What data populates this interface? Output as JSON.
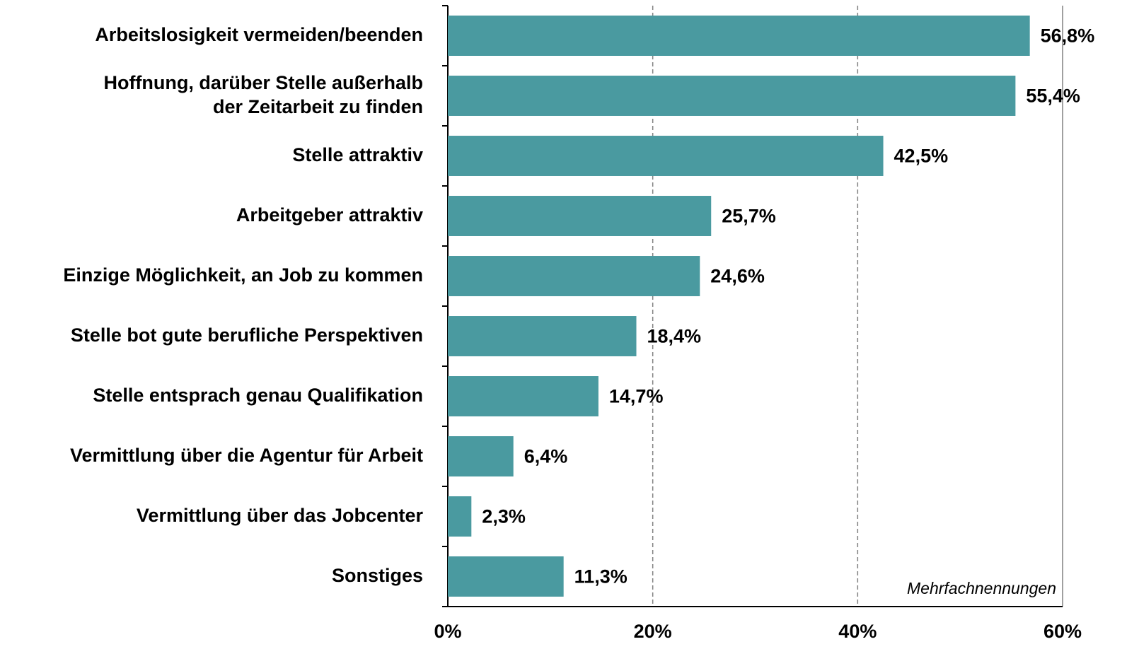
{
  "chart_data": {
    "type": "bar",
    "orientation": "horizontal",
    "categories": [
      "Arbeitslosigkeit vermeiden/beenden",
      "Hoffnung, darüber Stelle außerhalb\nder Zeitarbeit zu finden",
      "Stelle attraktiv",
      "Arbeitgeber attraktiv",
      "Einzige Möglichkeit, an Job zu kommen",
      "Stelle bot gute berufliche Perspektiven",
      "Stelle entsprach genau Qualifikation",
      "Vermittlung über die Agentur für Arbeit",
      "Vermittlung über das Jobcenter",
      "Sonstiges"
    ],
    "values": [
      56.8,
      55.4,
      42.5,
      25.7,
      24.6,
      18.4,
      14.7,
      6.4,
      2.3,
      11.3
    ],
    "value_labels": [
      "56,8%",
      "55,4%",
      "42,5%",
      "25,7%",
      "24,6%",
      "18,4%",
      "14,7%",
      "6,4%",
      "2,3%",
      "11,3%"
    ],
    "color": "#4a9aa0",
    "xlim": [
      0,
      60
    ],
    "xticks": [
      {
        "value": 0,
        "label": "0%"
      },
      {
        "value": 20,
        "label": "20%"
      },
      {
        "value": 40,
        "label": "40%"
      },
      {
        "value": 60,
        "label": "60%"
      }
    ],
    "grid": true,
    "annotation": "Mehrfachnennungen"
  }
}
